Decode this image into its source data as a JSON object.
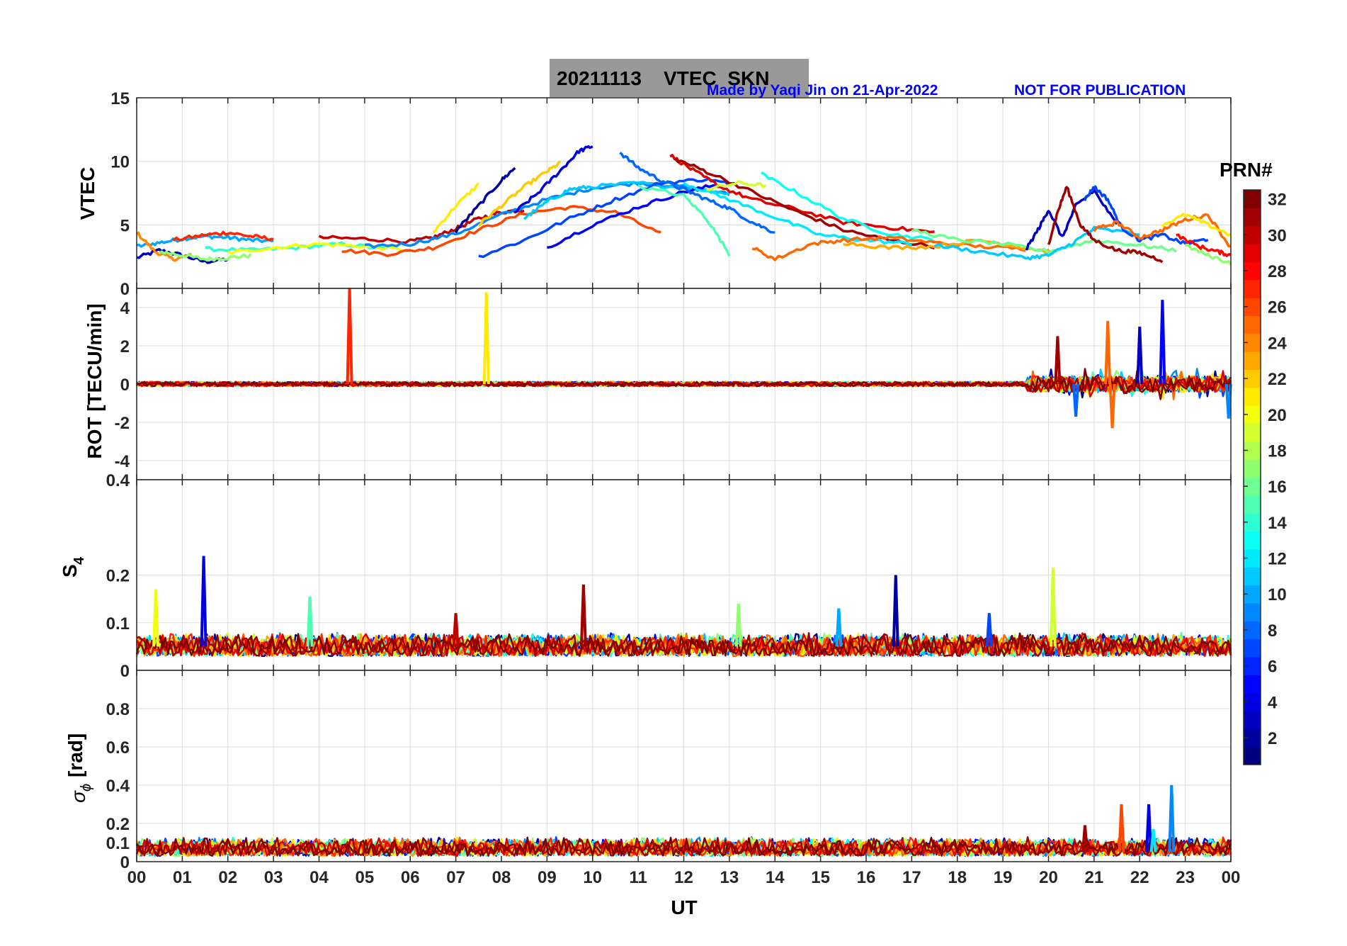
{
  "header": {
    "title": "20211113    VTEC  SKN",
    "credit": "Made by Yaqi Jin on 21-Apr-2022",
    "notice": "NOT FOR PUBLICATION"
  },
  "colorbar": {
    "title": "PRN#",
    "colormap": "jet",
    "range": [
      1,
      32
    ],
    "ticks": [
      "2",
      "4",
      "6",
      "8",
      "10",
      "12",
      "14",
      "16",
      "18",
      "20",
      "22",
      "24",
      "26",
      "28",
      "30",
      "32"
    ]
  },
  "chart_data": [
    {
      "type": "line",
      "panel": "VTEC",
      "ylabel": "VTEC",
      "ylim": [
        0,
        15
      ],
      "yticks": [
        "0",
        "5",
        "10",
        "15"
      ],
      "grid": true,
      "series": [
        {
          "prn": 3,
          "x": [
            0.0,
            0.5,
            1.0,
            1.5,
            2.0
          ],
          "y": [
            2.4,
            3.0,
            2.6,
            2.1,
            2.3
          ]
        },
        {
          "prn": 10,
          "x": [
            0.0,
            0.5,
            1.0,
            1.5,
            2.0,
            2.5,
            3.0
          ],
          "y": [
            3.3,
            3.6,
            3.9,
            4.1,
            4.0,
            3.8,
            3.7
          ]
        },
        {
          "prn": 24,
          "x": [
            0.0,
            0.4,
            0.8,
            1.2
          ],
          "y": [
            4.4,
            2.9,
            2.3,
            2.6
          ]
        },
        {
          "prn": 17,
          "x": [
            0.5,
            1.0,
            1.5,
            2.0,
            2.5
          ],
          "y": [
            2.9,
            2.6,
            2.3,
            2.4,
            2.6
          ]
        },
        {
          "prn": 27,
          "x": [
            0.8,
            1.5,
            2.0,
            2.5,
            3.0
          ],
          "y": [
            3.8,
            4.2,
            4.4,
            4.1,
            3.9
          ]
        },
        {
          "prn": 14,
          "x": [
            1.5,
            2.5,
            3.5,
            4.5,
            5.5
          ],
          "y": [
            3.1,
            3.0,
            3.2,
            3.5,
            3.1
          ]
        },
        {
          "prn": 20,
          "x": [
            2.0,
            3.0,
            4.0,
            5.0,
            6.0
          ],
          "y": [
            2.8,
            3.2,
            3.5,
            3.3,
            3.0
          ]
        },
        {
          "prn": 30,
          "x": [
            4.0,
            5.0,
            6.0,
            6.5,
            7.0,
            7.5,
            8.0,
            8.5
          ],
          "y": [
            4.0,
            3.9,
            3.7,
            4.0,
            4.7,
            5.5,
            6.0,
            6.2
          ]
        },
        {
          "prn": 26,
          "x": [
            4.5,
            5.5,
            6.5,
            7.5,
            8.5,
            9.5,
            10.5,
            11.5
          ],
          "y": [
            3.0,
            2.7,
            3.2,
            4.6,
            5.9,
            6.4,
            6.0,
            4.3
          ]
        },
        {
          "prn": 9,
          "x": [
            5.0,
            6.0,
            7.0,
            8.0,
            9.0,
            10.0,
            11.0,
            12.0,
            13.0
          ],
          "y": [
            3.3,
            3.5,
            4.3,
            5.8,
            7.0,
            7.9,
            8.3,
            8.0,
            7.4
          ]
        },
        {
          "prn": 21,
          "x": [
            6.5,
            7.0,
            7.5
          ],
          "y": [
            4.4,
            6.5,
            8.2
          ]
        },
        {
          "prn": 2,
          "x": [
            7.0,
            7.5,
            8.0,
            8.3
          ],
          "y": [
            4.5,
            6.5,
            8.5,
            9.5
          ]
        },
        {
          "prn": 22,
          "x": [
            7.5,
            8.0,
            8.5,
            9.0,
            9.3
          ],
          "y": [
            5.0,
            6.5,
            8.0,
            9.2,
            9.9
          ]
        },
        {
          "prn": 4,
          "x": [
            8.3,
            8.8,
            9.3,
            9.7,
            10.0
          ],
          "y": [
            6.0,
            7.5,
            9.3,
            10.8,
            11.2
          ]
        },
        {
          "prn": 11,
          "x": [
            8.5,
            9.0,
            9.5,
            10.0,
            11.0,
            12.0,
            13.0
          ],
          "y": [
            5.5,
            6.8,
            7.8,
            8.0,
            8.3,
            7.9,
            7.5
          ]
        },
        {
          "prn": 7,
          "x": [
            7.5,
            8.5,
            9.5,
            10.5,
            11.5,
            12.5,
            13.0
          ],
          "y": [
            2.5,
            3.8,
            5.5,
            7.0,
            8.3,
            8.6,
            8.2
          ]
        },
        {
          "prn": 5,
          "x": [
            9.0,
            10.0,
            11.0,
            12.0,
            12.8
          ],
          "y": [
            3.2,
            5.0,
            6.4,
            7.6,
            8.2
          ]
        },
        {
          "prn": 8,
          "x": [
            10.6,
            11.0,
            11.5,
            12.0,
            12.5,
            13.0,
            13.5,
            14.0
          ],
          "y": [
            10.7,
            9.5,
            8.5,
            7.8,
            7.0,
            6.3,
            5.2,
            4.4
          ]
        },
        {
          "prn": 29,
          "x": [
            11.7,
            12.2,
            12.8,
            13.5,
            14.5,
            15.5,
            16.5,
            17.5
          ],
          "y": [
            10.5,
            9.3,
            8.0,
            7.0,
            6.2,
            5.2,
            4.8,
            4.4
          ]
        },
        {
          "prn": 31,
          "x": [
            11.8,
            12.5,
            13.5,
            14.5,
            15.5,
            16.5,
            17.5
          ],
          "y": [
            10.2,
            9.2,
            7.6,
            6.0,
            4.6,
            3.8,
            3.3
          ]
        },
        {
          "prn": 15,
          "x": [
            11.0,
            12.0,
            12.5,
            13.0
          ],
          "y": [
            8.0,
            7.3,
            5.5,
            2.7
          ]
        },
        {
          "prn": 12,
          "x": [
            12.0,
            13.0,
            14.0,
            15.0,
            16.0,
            17.0
          ],
          "y": [
            8.3,
            7.0,
            5.6,
            4.2,
            3.8,
            3.5
          ]
        },
        {
          "prn": 19,
          "x": [
            12.5,
            13.2,
            13.8
          ],
          "y": [
            7.8,
            8.3,
            8.1
          ]
        },
        {
          "prn": 13,
          "x": [
            13.7,
            14.5,
            15.5,
            16.5,
            17.5
          ],
          "y": [
            9.0,
            7.5,
            5.5,
            4.3,
            3.8
          ]
        },
        {
          "prn": 25,
          "x": [
            13.5,
            14.0,
            14.8,
            15.5,
            16.5,
            17.5,
            18.5,
            19.5
          ],
          "y": [
            3.2,
            2.3,
            3.5,
            3.8,
            4.0,
            3.6,
            3.3,
            3.1
          ]
        },
        {
          "prn": 23,
          "x": [
            15.5,
            16.5,
            17.5,
            18.5,
            19.5,
            20.2
          ],
          "y": [
            3.6,
            3.2,
            3.3,
            3.8,
            3.2,
            2.8
          ]
        },
        {
          "prn": 16,
          "x": [
            17.0,
            18.0,
            19.0,
            20.0,
            21.0,
            22.0,
            22.8
          ],
          "y": [
            4.6,
            3.8,
            3.5,
            2.9,
            3.8,
            3.4,
            3.0
          ]
        },
        {
          "prn": 11,
          "x": [
            17.5,
            18.5,
            19.5,
            20.0,
            20.5,
            21.0,
            22.0
          ],
          "y": [
            3.4,
            2.9,
            2.4,
            2.6,
            3.5,
            4.7,
            4.3
          ]
        },
        {
          "prn": 3,
          "x": [
            19.5,
            19.8,
            20.0,
            20.3,
            20.6,
            21.0,
            21.5
          ],
          "y": [
            3.0,
            4.8,
            6.2,
            4.0,
            6.5,
            7.7,
            5.0
          ]
        },
        {
          "prn": 31,
          "x": [
            20.0,
            20.2,
            20.4,
            20.7,
            21.0,
            21.5,
            22.0,
            22.5
          ],
          "y": [
            3.5,
            6.0,
            8.0,
            5.0,
            3.8,
            3.0,
            2.8,
            2.2
          ]
        },
        {
          "prn": 7,
          "x": [
            20.8,
            21.0,
            21.3,
            21.6,
            22.0,
            22.5,
            23.0,
            23.5
          ],
          "y": [
            7.0,
            8.0,
            7.0,
            4.8,
            3.8,
            4.2,
            3.5,
            3.9
          ]
        },
        {
          "prn": 25,
          "x": [
            21.0,
            21.5,
            22.0,
            22.5,
            23.0,
            23.5,
            24.0
          ],
          "y": [
            4.6,
            5.2,
            4.0,
            4.6,
            5.4,
            5.8,
            3.2
          ]
        },
        {
          "prn": 21,
          "x": [
            22.5,
            23.0,
            23.5,
            24.0
          ],
          "y": [
            5.0,
            5.8,
            5.0,
            4.2
          ]
        },
        {
          "prn": 17,
          "x": [
            23.0,
            23.5,
            24.0
          ],
          "y": [
            3.4,
            2.6,
            2.0
          ]
        },
        {
          "prn": 28,
          "x": [
            22.8,
            23.3,
            23.7,
            24.0
          ],
          "y": [
            4.2,
            3.3,
            2.9,
            2.6
          ]
        }
      ]
    },
    {
      "type": "line",
      "panel": "ROT",
      "ylabel": "ROT [TECU/min]",
      "ylim": [
        -5,
        5
      ],
      "yticks": [
        "-4",
        "-2",
        "0",
        "2",
        "4"
      ],
      "grid": true,
      "baseline_noise": 0.2,
      "spikes": [
        {
          "x": 4.67,
          "y": 5.0,
          "prn": 27
        },
        {
          "x": 7.67,
          "y": 4.8,
          "prn": 21
        },
        {
          "x": 20.2,
          "y": 2.5,
          "prn": 31
        },
        {
          "x": 21.3,
          "y": 3.3,
          "prn": 25
        },
        {
          "x": 22.0,
          "y": 3.0,
          "prn": 3
        },
        {
          "x": 22.5,
          "y": 4.4,
          "prn": 5
        },
        {
          "x": 21.4,
          "y": -2.3,
          "prn": 25
        },
        {
          "x": 20.6,
          "y": -1.7,
          "prn": 8
        },
        {
          "x": 23.95,
          "y": -1.8,
          "prn": 9
        }
      ],
      "active_interval": [
        19.5,
        24.0
      ]
    },
    {
      "type": "line",
      "panel": "S4",
      "ylabel": "S4",
      "ylim": [
        0,
        0.4
      ],
      "yticks": [
        "0",
        "0.1",
        "0.2",
        "0.4"
      ],
      "grid": true,
      "baseline_range": [
        0.03,
        0.08
      ],
      "spikes": [
        {
          "x": 0.42,
          "y": 0.17,
          "prn": 20
        },
        {
          "x": 1.47,
          "y": 0.24,
          "prn": 4
        },
        {
          "x": 3.8,
          "y": 0.155,
          "prn": 15
        },
        {
          "x": 9.8,
          "y": 0.18,
          "prn": 31
        },
        {
          "x": 7.0,
          "y": 0.12,
          "prn": 30
        },
        {
          "x": 13.2,
          "y": 0.14,
          "prn": 17
        },
        {
          "x": 15.4,
          "y": 0.13,
          "prn": 10
        },
        {
          "x": 16.65,
          "y": 0.2,
          "prn": 2
        },
        {
          "x": 20.1,
          "y": 0.215,
          "prn": 19
        },
        {
          "x": 18.7,
          "y": 0.12,
          "prn": 7
        }
      ]
    },
    {
      "type": "line",
      "panel": "sigma_phi",
      "ylabel": "[rad]",
      "ylim": [
        0,
        1
      ],
      "yticks": [
        "0",
        "0.1",
        "0.2",
        "0.4",
        "0.6",
        "0.8"
      ],
      "grid": true,
      "baseline_range": [
        0.03,
        0.13
      ],
      "spikes": [
        {
          "x": 20.8,
          "y": 0.19,
          "prn": 31
        },
        {
          "x": 21.6,
          "y": 0.3,
          "prn": 26
        },
        {
          "x": 22.2,
          "y": 0.3,
          "prn": 4
        },
        {
          "x": 22.7,
          "y": 0.4,
          "prn": 9
        },
        {
          "x": 22.3,
          "y": 0.17,
          "prn": 12
        }
      ]
    }
  ],
  "xaxis": {
    "label": "UT",
    "ticks": [
      "00",
      "01",
      "02",
      "03",
      "04",
      "05",
      "06",
      "07",
      "08",
      "09",
      "10",
      "11",
      "12",
      "13",
      "14",
      "15",
      "16",
      "17",
      "18",
      "19",
      "20",
      "21",
      "22",
      "23",
      "00"
    ],
    "range": [
      0,
      24
    ]
  }
}
